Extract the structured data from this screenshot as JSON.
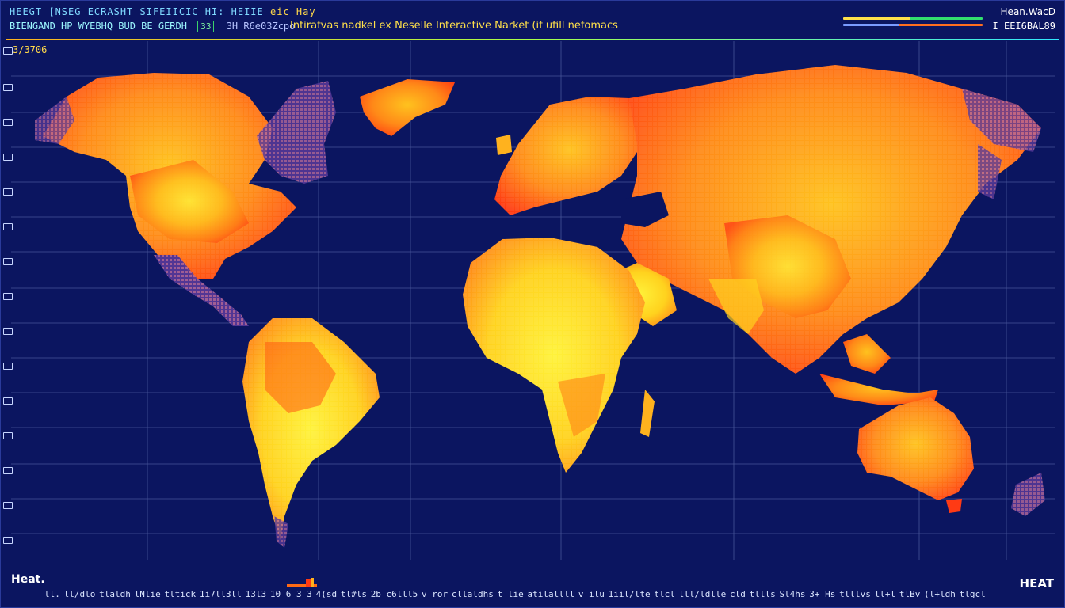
{
  "header": {
    "ticker_top": "HEEGT [NSEG ECRASHT SIFEIICIC HI: HEIIE",
    "ticker_top_highlight": "eic Hay",
    "ticker_sub": "BIENGAND HP WYEBHQ BUD BE GERDH",
    "ticker_sub_box": "33",
    "ticker_sub_addr": "3H R6e03Zcpo",
    "headline": "Intirafvas nadkel ex Neselle Interactive Narket (if ufill nefomacs",
    "right_title": "Hean.WacD",
    "right_code": "I EEI6BAL89",
    "coord_readout": "3/3706"
  },
  "legend": {
    "title": "Heat.",
    "logo": "HEAT",
    "color_scale": [
      "#0b1560",
      "#6a3fa2",
      "#ff2a12",
      "#ff7a14",
      "#ffc21e",
      "#fff23a"
    ]
  },
  "footer_labels": [
    "ll.",
    "ll/dlo",
    "tlaldh",
    "lNlie",
    "tltick",
    "1i7ll3ll",
    "13l3",
    "10 6 3 3",
    "4(sd",
    "tl#ls",
    "2b c6lll5",
    "v ror",
    "cllaldhs",
    "t lie",
    "atilallll",
    "v ilu",
    "1iil/lte",
    "tlcl",
    "lll/ldlle",
    "cld",
    "tllls",
    "Sl4hs",
    "3+ Hs",
    "tlllvs",
    "ll+l",
    "tlBv",
    "(l+ldh",
    "tlgcl"
  ],
  "map": {
    "colors": {
      "ocean": "#0b1560",
      "grid": "#8fa0dc",
      "cool": "#6a3fa2",
      "hot": "#ff2a12",
      "warm": "#ff7a14",
      "mild": "#ffc21e",
      "peak": "#fff23a"
    }
  }
}
